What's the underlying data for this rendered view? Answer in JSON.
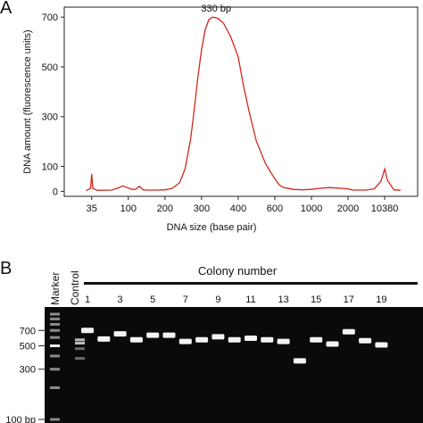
{
  "chart_data": [
    {
      "panel_label": "A",
      "type": "line",
      "xlabel": "DNA size (base pair)",
      "ylabel": "DNA amount (fluorescence units)",
      "ylim": [
        -20,
        740
      ],
      "yticks": [
        0,
        100,
        300,
        500,
        700
      ],
      "xticks": [
        "35",
        "100",
        "200",
        "300",
        "400",
        "600",
        "1000",
        "2000",
        "10380"
      ],
      "xlim_index": [
        -0.75,
        8.9
      ],
      "annotation": "330 bp",
      "annotation_x": 330,
      "annotation_y": 700,
      "line_color": "#d0281c",
      "series": [
        {
          "x": [
            25,
            33,
            35,
            37,
            45,
            70,
            80,
            90,
            110,
            120,
            130,
            140,
            150,
            180,
            200,
            220,
            240,
            255,
            270,
            280,
            290,
            300,
            310,
            320,
            330,
            345,
            360,
            380,
            400,
            430,
            460,
            500,
            550,
            600,
            650,
            700,
            800,
            900,
            1000,
            1200,
            1500,
            2000,
            3000,
            6000,
            8000,
            9500,
            10380,
            11000,
            12500,
            14000
          ],
          "y": [
            3,
            12,
            70,
            12,
            4,
            5,
            12,
            22,
            8,
            8,
            20,
            6,
            5,
            5,
            6,
            12,
            35,
            90,
            210,
            330,
            460,
            570,
            650,
            690,
            700,
            695,
            675,
            620,
            540,
            420,
            320,
            200,
            110,
            50,
            25,
            15,
            8,
            6,
            8,
            12,
            15,
            10,
            5,
            5,
            10,
            40,
            90,
            45,
            6,
            4
          ]
        }
      ]
    },
    {
      "panel_label": "B",
      "type": "gel",
      "title": "Colony number",
      "lane_labels": [
        "Marker",
        "Control"
      ],
      "colony_numbers": [
        "1",
        "3",
        "5",
        "7",
        "9",
        "11",
        "13",
        "15",
        "17",
        "19"
      ],
      "lane_count": 20,
      "yticks": [
        "700",
        "500",
        "300",
        "100 bp"
      ],
      "marker_ladder_bp": [
        1000,
        900,
        800,
        700,
        600,
        500,
        400,
        300,
        200,
        100
      ],
      "control_bands_bp": [
        570,
        530,
        470,
        380
      ],
      "colony_band_bp": [
        700,
        580,
        650,
        570,
        630,
        630,
        550,
        570,
        610,
        570,
        590,
        570,
        550,
        360,
        570,
        520,
        680,
        560,
        510
      ]
    }
  ]
}
